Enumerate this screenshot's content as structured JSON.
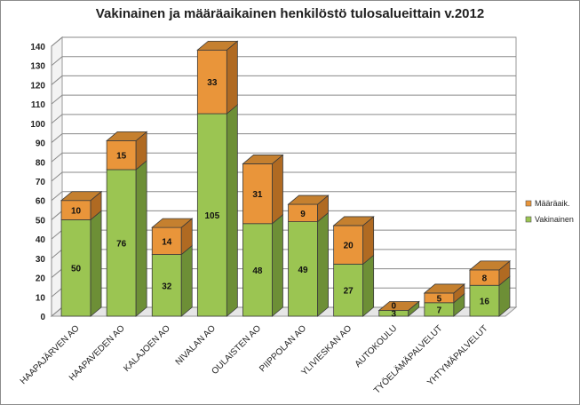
{
  "chart_data": {
    "type": "bar",
    "stacked": true,
    "three_d": true,
    "title": "Vakinainen ja määräaikainen henkilöstö tulosalueittain v.2012",
    "categories": [
      "HAAPAJÄRVEN AO",
      "HAAPAVEDEN AO",
      "KALAJOEN AO",
      "NIVALAN AO",
      "OULAISTEN AO",
      "PIIPPOLAN AO",
      "YLIVIESKAN AO",
      "AUTOKOULU",
      "TYÖELÄMÄPALVELUT",
      "YHTYMÄPALVELUT"
    ],
    "series": [
      {
        "name": "Vakinainen",
        "values": [
          50,
          76,
          32,
          105,
          48,
          49,
          27,
          3,
          7,
          16
        ],
        "color": "#9bc552",
        "color_side": "#6d8f36",
        "color_top": "#c3e07e"
      },
      {
        "name": "Määräaik.",
        "values": [
          10,
          15,
          14,
          33,
          31,
          9,
          20,
          0,
          5,
          8
        ],
        "color": "#e9953a",
        "color_side": "#b06a22",
        "color_top": "#c5802f"
      }
    ],
    "ylim": [
      0,
      140
    ],
    "yticks": [
      0,
      10,
      20,
      30,
      40,
      50,
      60,
      70,
      80,
      90,
      100,
      110,
      120,
      130,
      140
    ],
    "grid": true,
    "legend": "right"
  }
}
